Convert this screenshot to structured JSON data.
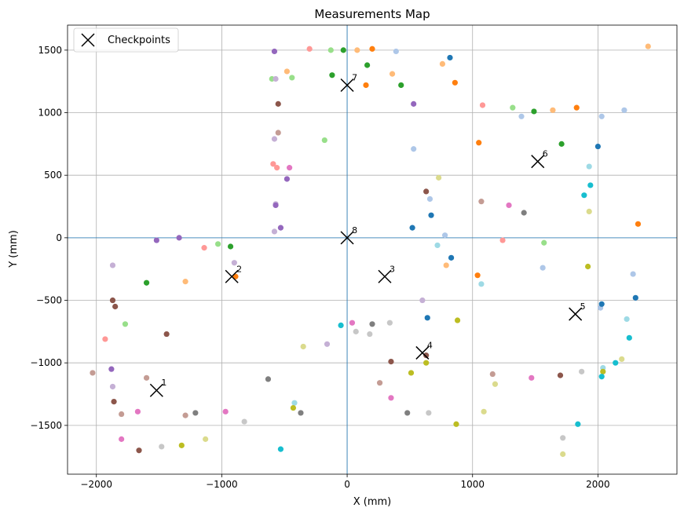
{
  "chart_data": {
    "type": "scatter",
    "title": "Measurements Map",
    "xlabel": "X (mm)",
    "ylabel": "Y (mm)",
    "xlim": [
      -2230,
      2630
    ],
    "ylim": [
      -1890,
      1700
    ],
    "xticks": [
      -2000,
      -1000,
      0,
      1000,
      2000
    ],
    "yticks": [
      -1500,
      -1000,
      -500,
      0,
      500,
      1000,
      1500
    ],
    "grid": true,
    "reference_lines": {
      "x": 0,
      "y": 0,
      "color": "#1f77b4"
    },
    "legend": {
      "position": "top-left",
      "entries": [
        "Checkpoints"
      ]
    },
    "checkpoints": [
      {
        "label": "1",
        "x": -1520,
        "y": -1220
      },
      {
        "label": "2",
        "x": -920,
        "y": -310
      },
      {
        "label": "3",
        "x": 300,
        "y": -310
      },
      {
        "label": "4",
        "x": 600,
        "y": -920
      },
      {
        "label": "5",
        "x": 1820,
        "y": -610
      },
      {
        "label": "6",
        "x": 1520,
        "y": 610
      },
      {
        "label": "7",
        "x": 0,
        "y": 1220
      },
      {
        "label": "8",
        "x": 0,
        "y": 0
      }
    ],
    "points": [
      {
        "x": -580,
        "y": 1490,
        "color": "#9467bd"
      },
      {
        "x": -300,
        "y": 1510,
        "color": "#ff9896"
      },
      {
        "x": -130,
        "y": 1500,
        "color": "#98df8a"
      },
      {
        "x": -30,
        "y": 1500,
        "color": "#2ca02c"
      },
      {
        "x": 80,
        "y": 1500,
        "color": "#ffbb78"
      },
      {
        "x": 200,
        "y": 1510,
        "color": "#ff7f0e"
      },
      {
        "x": 390,
        "y": 1490,
        "color": "#aec7e8"
      },
      {
        "x": 820,
        "y": 1440,
        "color": "#1f77b4"
      },
      {
        "x": 2400,
        "y": 1530,
        "color": "#ffbb78"
      },
      {
        "x": -480,
        "y": 1330,
        "color": "#ffbb78"
      },
      {
        "x": -600,
        "y": 1270,
        "color": "#98df8a"
      },
      {
        "x": -570,
        "y": 1270,
        "color": "#c5b0d5"
      },
      {
        "x": -440,
        "y": 1280,
        "color": "#98df8a"
      },
      {
        "x": -120,
        "y": 1300,
        "color": "#2ca02c"
      },
      {
        "x": 160,
        "y": 1380,
        "color": "#2ca02c"
      },
      {
        "x": 360,
        "y": 1310,
        "color": "#ffbb78"
      },
      {
        "x": 760,
        "y": 1390,
        "color": "#ffbb78"
      },
      {
        "x": 150,
        "y": 1220,
        "color": "#ff7f0e"
      },
      {
        "x": 430,
        "y": 1220,
        "color": "#2ca02c"
      },
      {
        "x": 860,
        "y": 1240,
        "color": "#ff7f0e"
      },
      {
        "x": -550,
        "y": 1070,
        "color": "#8c564b"
      },
      {
        "x": 530,
        "y": 1070,
        "color": "#9467bd"
      },
      {
        "x": 1080,
        "y": 1060,
        "color": "#ff9896"
      },
      {
        "x": 1320,
        "y": 1040,
        "color": "#98df8a"
      },
      {
        "x": 1390,
        "y": 970,
        "color": "#aec7e8"
      },
      {
        "x": 1490,
        "y": 1010,
        "color": "#2ca02c"
      },
      {
        "x": 1640,
        "y": 1020,
        "color": "#ffbb78"
      },
      {
        "x": 1830,
        "y": 1040,
        "color": "#ff7f0e"
      },
      {
        "x": 2030,
        "y": 970,
        "color": "#aec7e8"
      },
      {
        "x": 2210,
        "y": 1020,
        "color": "#aec7e8"
      },
      {
        "x": -550,
        "y": 840,
        "color": "#c49c94"
      },
      {
        "x": -580,
        "y": 790,
        "color": "#c5b0d5"
      },
      {
        "x": -180,
        "y": 780,
        "color": "#98df8a"
      },
      {
        "x": 1050,
        "y": 760,
        "color": "#ff7f0e"
      },
      {
        "x": 530,
        "y": 710,
        "color": "#aec7e8"
      },
      {
        "x": 1710,
        "y": 750,
        "color": "#2ca02c"
      },
      {
        "x": 2000,
        "y": 730,
        "color": "#1f77b4"
      },
      {
        "x": -590,
        "y": 590,
        "color": "#ff9896"
      },
      {
        "x": -560,
        "y": 560,
        "color": "#ff9896"
      },
      {
        "x": -460,
        "y": 560,
        "color": "#e377c2"
      },
      {
        "x": -480,
        "y": 470,
        "color": "#9467bd"
      },
      {
        "x": 730,
        "y": 480,
        "color": "#dbdb8d"
      },
      {
        "x": 1930,
        "y": 570,
        "color": "#9edae5"
      },
      {
        "x": 1940,
        "y": 420,
        "color": "#17becf"
      },
      {
        "x": 1890,
        "y": 340,
        "color": "#17becf"
      },
      {
        "x": 630,
        "y": 370,
        "color": "#8c564b"
      },
      {
        "x": 660,
        "y": 310,
        "color": "#aec7e8"
      },
      {
        "x": 1070,
        "y": 290,
        "color": "#c49c94"
      },
      {
        "x": 1290,
        "y": 260,
        "color": "#e377c2"
      },
      {
        "x": -570,
        "y": 270,
        "color": "#c5b0d5"
      },
      {
        "x": -570,
        "y": 260,
        "color": "#9467bd"
      },
      {
        "x": 670,
        "y": 180,
        "color": "#1f77b4"
      },
      {
        "x": 1410,
        "y": 200,
        "color": "#7f7f7f"
      },
      {
        "x": 1930,
        "y": 210,
        "color": "#dbdb8d"
      },
      {
        "x": 2320,
        "y": 110,
        "color": "#ff7f0e"
      },
      {
        "x": -580,
        "y": 50,
        "color": "#c5b0d5"
      },
      {
        "x": -530,
        "y": 80,
        "color": "#9467bd"
      },
      {
        "x": 520,
        "y": 80,
        "color": "#1f77b4"
      },
      {
        "x": 780,
        "y": 20,
        "color": "#aec7e8"
      },
      {
        "x": -1520,
        "y": -20,
        "color": "#9467bd"
      },
      {
        "x": -1340,
        "y": 0,
        "color": "#9467bd"
      },
      {
        "x": -1140,
        "y": -80,
        "color": "#ff9896"
      },
      {
        "x": -1030,
        "y": -50,
        "color": "#98df8a"
      },
      {
        "x": -930,
        "y": -70,
        "color": "#2ca02c"
      },
      {
        "x": 720,
        "y": -60,
        "color": "#9edae5"
      },
      {
        "x": 1240,
        "y": -20,
        "color": "#ff9896"
      },
      {
        "x": 1570,
        "y": -40,
        "color": "#98df8a"
      },
      {
        "x": -1870,
        "y": -220,
        "color": "#c5b0d5"
      },
      {
        "x": -900,
        "y": -200,
        "color": "#c5b0d5"
      },
      {
        "x": -1600,
        "y": -360,
        "color": "#2ca02c"
      },
      {
        "x": -1290,
        "y": -350,
        "color": "#ffbb78"
      },
      {
        "x": -890,
        "y": -310,
        "color": "#ff7f0e"
      },
      {
        "x": 790,
        "y": -220,
        "color": "#ffbb78"
      },
      {
        "x": 830,
        "y": -160,
        "color": "#1f77b4"
      },
      {
        "x": 1040,
        "y": -300,
        "color": "#ff7f0e"
      },
      {
        "x": 1070,
        "y": -370,
        "color": "#9edae5"
      },
      {
        "x": 1560,
        "y": -240,
        "color": "#aec7e8"
      },
      {
        "x": 1920,
        "y": -230,
        "color": "#bcbd22"
      },
      {
        "x": 2280,
        "y": -290,
        "color": "#aec7e8"
      },
      {
        "x": -1870,
        "y": -500,
        "color": "#8c564b"
      },
      {
        "x": -1850,
        "y": -550,
        "color": "#8c564b"
      },
      {
        "x": 600,
        "y": -500,
        "color": "#c5b0d5"
      },
      {
        "x": 2020,
        "y": -560,
        "color": "#aec7e8"
      },
      {
        "x": 2030,
        "y": -530,
        "color": "#1f77b4"
      },
      {
        "x": 2300,
        "y": -480,
        "color": "#1f77b4"
      },
      {
        "x": -1770,
        "y": -690,
        "color": "#98df8a"
      },
      {
        "x": -1440,
        "y": -770,
        "color": "#8c564b"
      },
      {
        "x": -1930,
        "y": -810,
        "color": "#ff9896"
      },
      {
        "x": -160,
        "y": -850,
        "color": "#c5b0d5"
      },
      {
        "x": -50,
        "y": -700,
        "color": "#17becf"
      },
      {
        "x": 40,
        "y": -680,
        "color": "#e377c2"
      },
      {
        "x": 70,
        "y": -750,
        "color": "#c7c7c7"
      },
      {
        "x": 180,
        "y": -770,
        "color": "#c7c7c7"
      },
      {
        "x": 200,
        "y": -690,
        "color": "#7f7f7f"
      },
      {
        "x": 340,
        "y": -680,
        "color": "#c7c7c7"
      },
      {
        "x": 640,
        "y": -640,
        "color": "#1f77b4"
      },
      {
        "x": 880,
        "y": -660,
        "color": "#bcbd22"
      },
      {
        "x": 2230,
        "y": -650,
        "color": "#9edae5"
      },
      {
        "x": 2250,
        "y": -800,
        "color": "#17becf"
      },
      {
        "x": -350,
        "y": -870,
        "color": "#dbdb8d"
      },
      {
        "x": 350,
        "y": -990,
        "color": "#8c564b"
      },
      {
        "x": 630,
        "y": -940,
        "color": "#8c564b"
      },
      {
        "x": 630,
        "y": -1000,
        "color": "#bcbd22"
      },
      {
        "x": 2190,
        "y": -970,
        "color": "#dbdb8d"
      },
      {
        "x": 2140,
        "y": -1000,
        "color": "#17becf"
      },
      {
        "x": 2040,
        "y": -1040,
        "color": "#9edae5"
      },
      {
        "x": 2040,
        "y": -1070,
        "color": "#bcbd22"
      },
      {
        "x": 2030,
        "y": -1110,
        "color": "#17becf"
      },
      {
        "x": -2030,
        "y": -1080,
        "color": "#c49c94"
      },
      {
        "x": -1880,
        "y": -1050,
        "color": "#9467bd"
      },
      {
        "x": -1600,
        "y": -1120,
        "color": "#c49c94"
      },
      {
        "x": -630,
        "y": -1130,
        "color": "#7f7f7f"
      },
      {
        "x": 510,
        "y": -1080,
        "color": "#bcbd22"
      },
      {
        "x": 1160,
        "y": -1090,
        "color": "#c49c94"
      },
      {
        "x": 1470,
        "y": -1120,
        "color": "#e377c2"
      },
      {
        "x": 1700,
        "y": -1100,
        "color": "#8c564b"
      },
      {
        "x": 1870,
        "y": -1070,
        "color": "#c7c7c7"
      },
      {
        "x": -1870,
        "y": -1190,
        "color": "#c5b0d5"
      },
      {
        "x": 260,
        "y": -1160,
        "color": "#c49c94"
      },
      {
        "x": 1180,
        "y": -1170,
        "color": "#dbdb8d"
      },
      {
        "x": -1860,
        "y": -1310,
        "color": "#8c564b"
      },
      {
        "x": 350,
        "y": -1280,
        "color": "#e377c2"
      },
      {
        "x": -1800,
        "y": -1410,
        "color": "#c49c94"
      },
      {
        "x": -1670,
        "y": -1390,
        "color": "#e377c2"
      },
      {
        "x": -1290,
        "y": -1420,
        "color": "#c49c94"
      },
      {
        "x": -1210,
        "y": -1400,
        "color": "#7f7f7f"
      },
      {
        "x": -970,
        "y": -1390,
        "color": "#e377c2"
      },
      {
        "x": -420,
        "y": -1320,
        "color": "#9edae5"
      },
      {
        "x": -430,
        "y": -1360,
        "color": "#bcbd22"
      },
      {
        "x": -370,
        "y": -1400,
        "color": "#7f7f7f"
      },
      {
        "x": 480,
        "y": -1400,
        "color": "#7f7f7f"
      },
      {
        "x": 650,
        "y": -1400,
        "color": "#c7c7c7"
      },
      {
        "x": 1090,
        "y": -1390,
        "color": "#dbdb8d"
      },
      {
        "x": -820,
        "y": -1470,
        "color": "#c7c7c7"
      },
      {
        "x": 870,
        "y": -1490,
        "color": "#bcbd22"
      },
      {
        "x": 1840,
        "y": -1490,
        "color": "#17becf"
      },
      {
        "x": -1800,
        "y": -1610,
        "color": "#e377c2"
      },
      {
        "x": -1660,
        "y": -1700,
        "color": "#8c564b"
      },
      {
        "x": -1480,
        "y": -1670,
        "color": "#c7c7c7"
      },
      {
        "x": -1320,
        "y": -1660,
        "color": "#bcbd22"
      },
      {
        "x": -1130,
        "y": -1610,
        "color": "#dbdb8d"
      },
      {
        "x": -530,
        "y": -1690,
        "color": "#17becf"
      },
      {
        "x": 1720,
        "y": -1600,
        "color": "#c7c7c7"
      },
      {
        "x": 1720,
        "y": -1730,
        "color": "#dbdb8d"
      }
    ]
  }
}
